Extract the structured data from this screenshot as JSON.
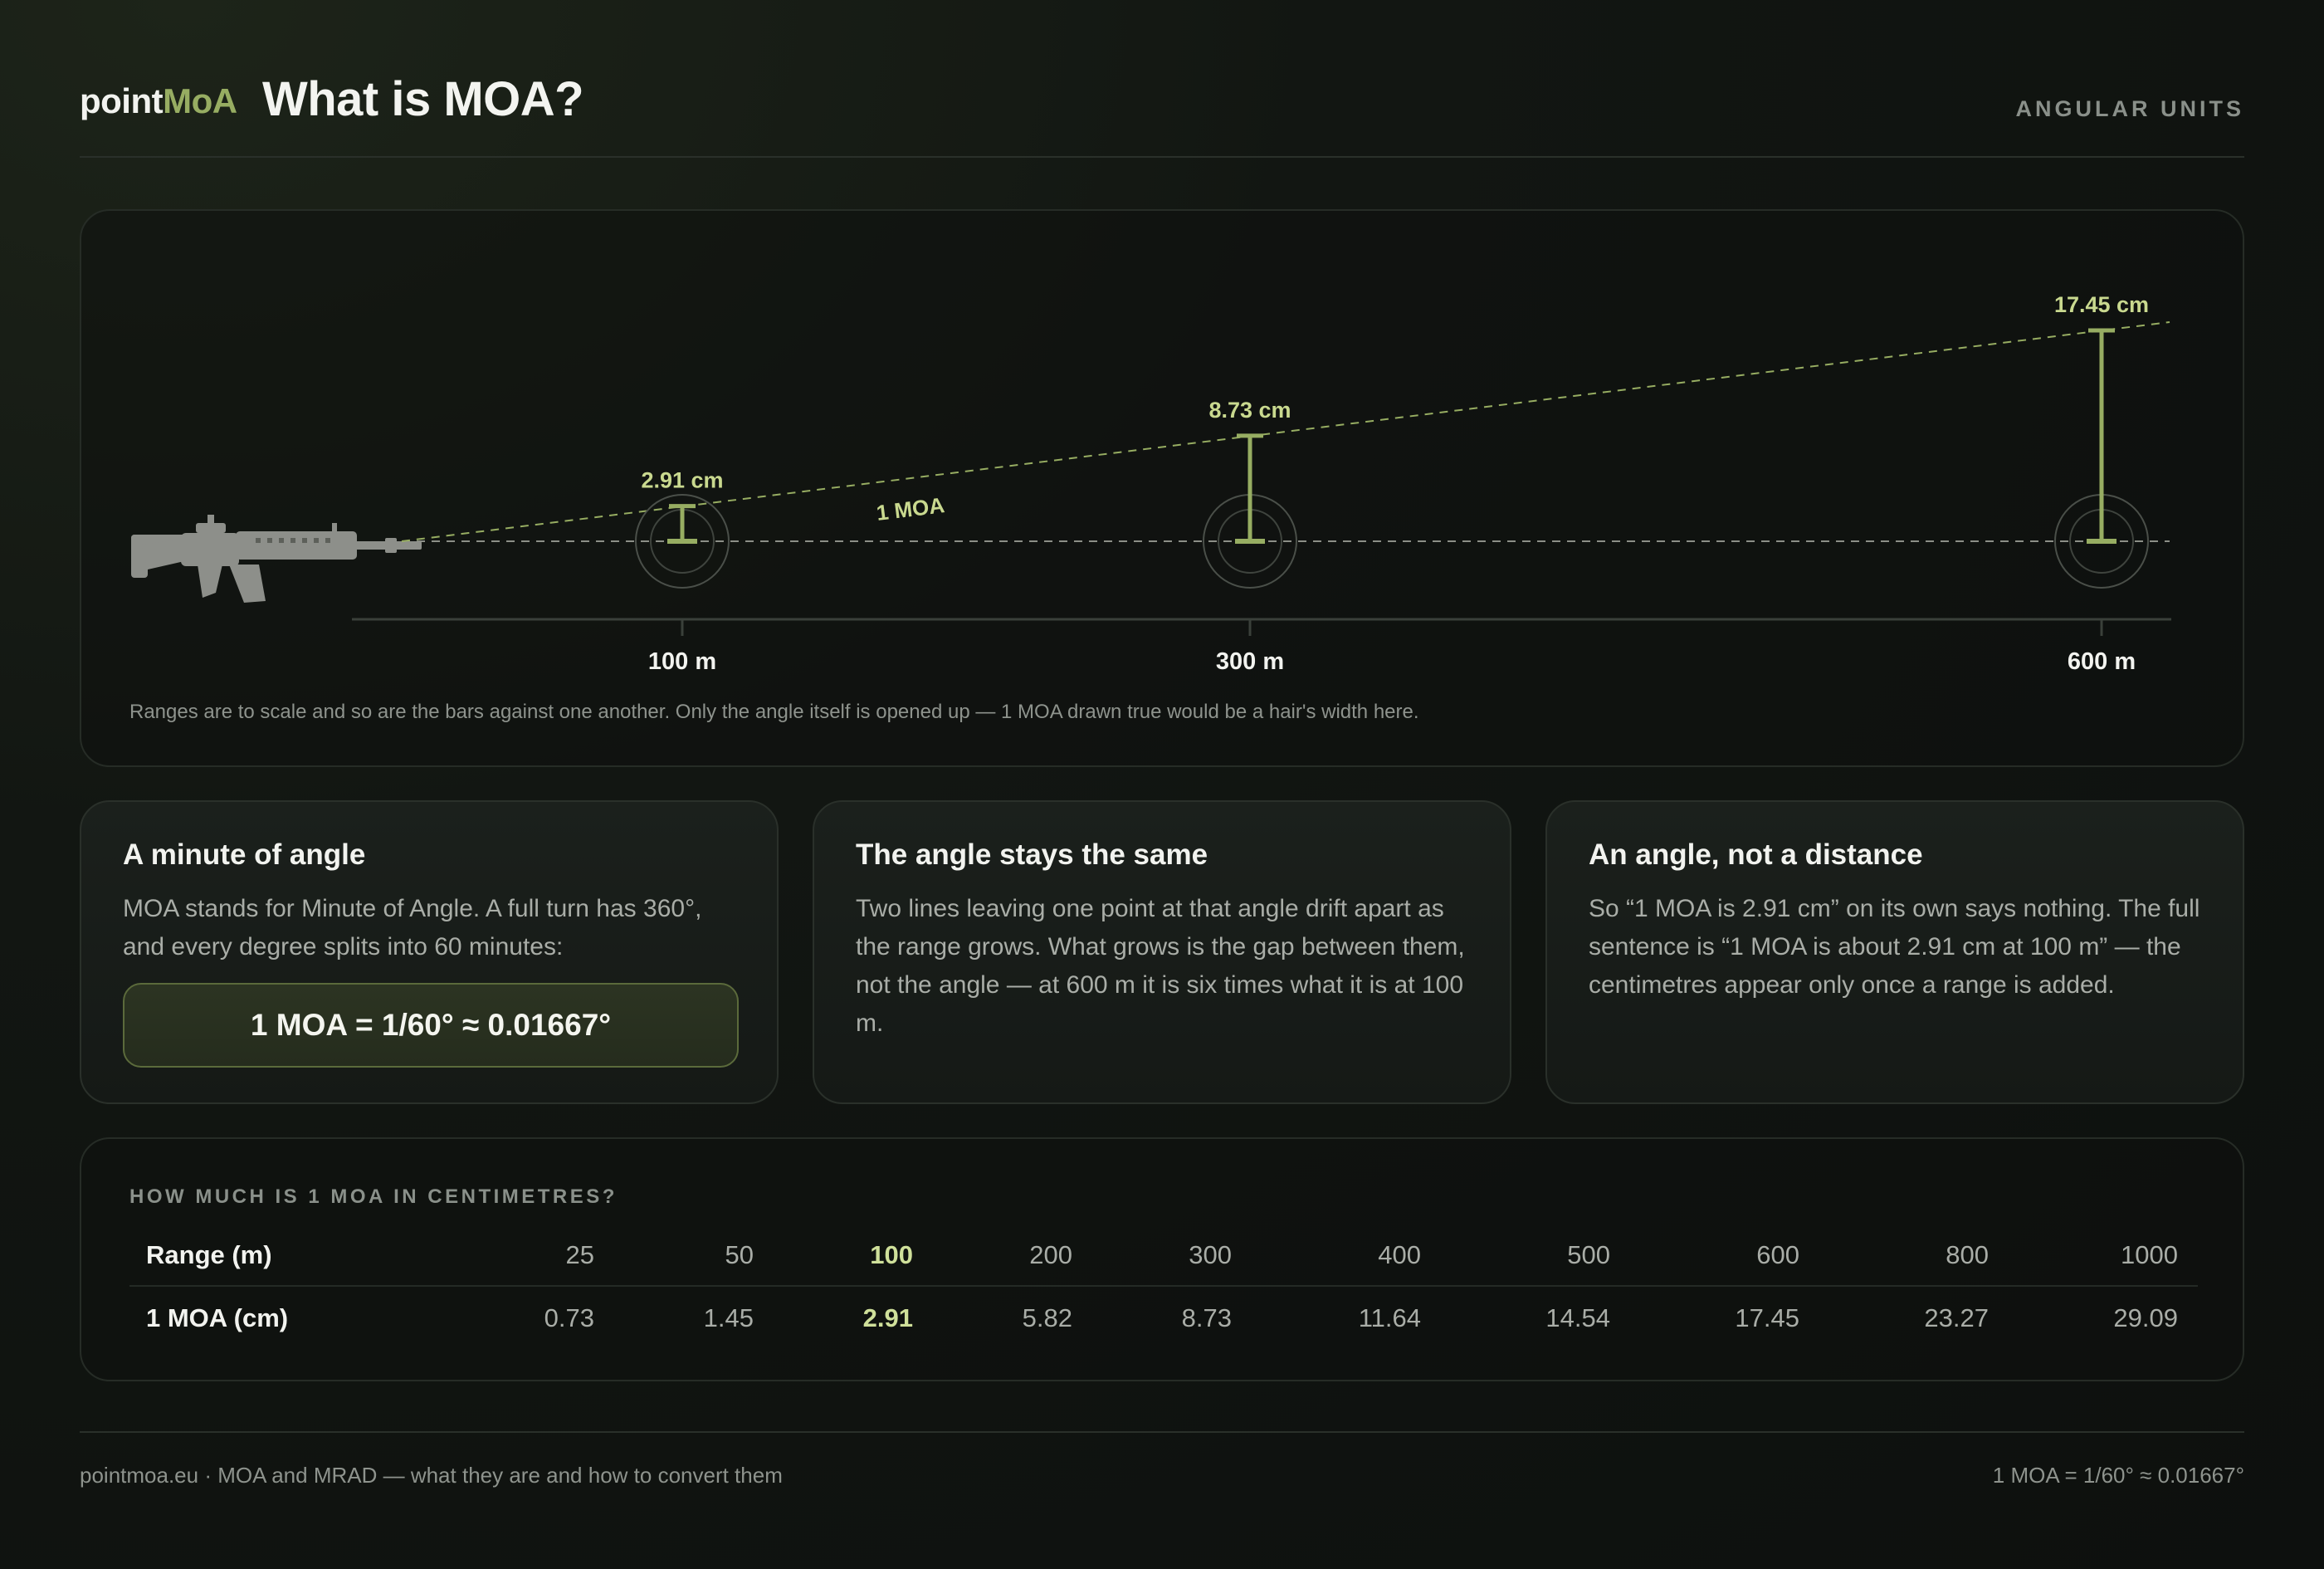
{
  "header": {
    "brand_part1": "point",
    "brand_part2": "MoA",
    "title": "What is MOA?",
    "tag": "ANGULAR UNITS"
  },
  "diagram": {
    "angle_label": "1 MOA",
    "targets": [
      {
        "range_label": "100 m",
        "size_label": "2.91 cm",
        "range_m": 100,
        "size_cm": 2.91
      },
      {
        "range_label": "300 m",
        "size_label": "8.73 cm",
        "range_m": 300,
        "size_cm": 8.73
      },
      {
        "range_label": "600 m",
        "size_label": "17.45 cm",
        "range_m": 600,
        "size_cm": 17.45
      }
    ],
    "note": "Ranges are to scale and so are the bars against one another. Only the angle itself is opened up — 1 MOA drawn true would be a hair's width here.",
    "colors": {
      "accent": "#97ad62",
      "label": "#c9d98f",
      "line": "#8c8f87"
    }
  },
  "cards": [
    {
      "title": "A minute of angle",
      "text": "MOA stands for Minute of Angle. A full turn has 360°, and every degree splits into 60 minutes:",
      "formula": "1 MOA = 1/60° ≈ 0.01667°"
    },
    {
      "title": "The angle stays the same",
      "text": "Two lines leaving one point at that angle drift apart as the range grows. What grows is the gap between them, not the angle — at 600 m it is six times what it is at 100 m."
    },
    {
      "title": "An angle, not a distance",
      "text": "So “1 MOA is 2.91 cm” on its own says nothing. The full sentence is “1 MOA is about 2.91 cm at 100 m” — the centimetres appear only once a range is added."
    }
  ],
  "table": {
    "heading": "HOW MUCH IS 1 MOA IN CENTIMETRES?",
    "row_labels": [
      "Range (m)",
      "1 MOA (cm)"
    ],
    "ranges": [
      "25",
      "50",
      "100",
      "200",
      "300",
      "400",
      "500",
      "600",
      "800",
      "1000"
    ],
    "values": [
      "0.73",
      "1.45",
      "2.91",
      "5.82",
      "8.73",
      "11.64",
      "14.54",
      "17.45",
      "23.27",
      "29.09"
    ],
    "highlight_range": "100"
  },
  "footer": {
    "left": "pointmoa.eu · MOA and MRAD — what they are and how to convert them",
    "right": "1 MOA = 1/60° ≈ 0.01667°"
  }
}
